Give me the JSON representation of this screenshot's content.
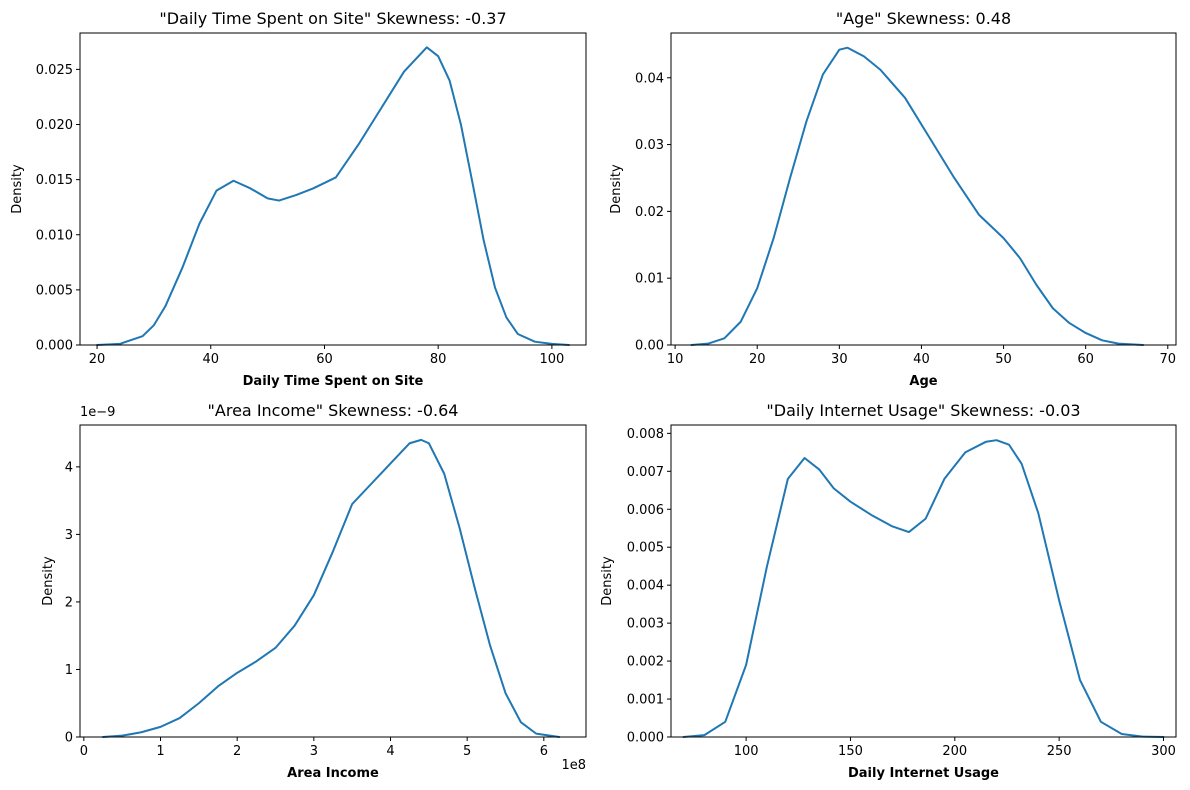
{
  "chart_data": [
    {
      "type": "line",
      "title": "\"Daily Time Spent on Site\" Skewness: -0.37",
      "xlabel": "Daily Time Spent on Site",
      "ylabel": "Density",
      "xlim": [
        17,
        106
      ],
      "ylim": [
        0,
        0.0283
      ],
      "xticks": [
        20,
        40,
        60,
        80,
        100
      ],
      "xtick_labels": [
        "20",
        "40",
        "60",
        "80",
        "100"
      ],
      "yticks": [
        0,
        0.005,
        0.01,
        0.015,
        0.02,
        0.025
      ],
      "ytick_labels": [
        "0.000",
        "0.005",
        "0.010",
        "0.015",
        "0.020",
        "0.025"
      ],
      "x_offset_label": "",
      "y_offset_label": "",
      "grid": false,
      "color": "#1f77b4",
      "series": [
        {
          "x": [
            20,
            24,
            28,
            30,
            32,
            35,
            38,
            41,
            44,
            47,
            50,
            52,
            55,
            58,
            62,
            66,
            70,
            74,
            78,
            80,
            82,
            84,
            86,
            88,
            90,
            92,
            94,
            97,
            100,
            103
          ],
          "values": [
            0.0,
            0.0001,
            0.0008,
            0.0018,
            0.0035,
            0.007,
            0.011,
            0.014,
            0.0149,
            0.0142,
            0.0133,
            0.0131,
            0.0136,
            0.0142,
            0.0152,
            0.0182,
            0.0215,
            0.0248,
            0.027,
            0.0262,
            0.024,
            0.02,
            0.0148,
            0.0095,
            0.0052,
            0.0025,
            0.001,
            0.0003,
            0.0001,
            0.0
          ]
        }
      ]
    },
    {
      "type": "line",
      "title": "\"Age\" Skewness: 0.48",
      "xlabel": "Age",
      "ylabel": "Density",
      "xlim": [
        9.5,
        71
      ],
      "ylim": [
        0,
        0.0467
      ],
      "xticks": [
        10,
        20,
        30,
        40,
        50,
        60,
        70
      ],
      "xtick_labels": [
        "10",
        "20",
        "30",
        "40",
        "50",
        "60",
        "70"
      ],
      "yticks": [
        0,
        0.01,
        0.02,
        0.03,
        0.04
      ],
      "ytick_labels": [
        "0.00",
        "0.01",
        "0.02",
        "0.03",
        "0.04"
      ],
      "x_offset_label": "",
      "y_offset_label": "",
      "grid": false,
      "color": "#1f77b4",
      "series": [
        {
          "x": [
            12,
            14,
            16,
            18,
            20,
            22,
            24,
            26,
            28,
            30,
            31,
            33,
            35,
            38,
            41,
            44,
            47,
            50,
            52,
            54,
            56,
            58,
            60,
            62,
            64,
            67
          ],
          "values": [
            0.0,
            0.0002,
            0.001,
            0.0035,
            0.0085,
            0.016,
            0.025,
            0.0335,
            0.0405,
            0.0442,
            0.0445,
            0.0432,
            0.0412,
            0.037,
            0.031,
            0.025,
            0.0195,
            0.016,
            0.013,
            0.009,
            0.0055,
            0.0033,
            0.0018,
            0.0007,
            0.0002,
            0.0
          ]
        }
      ]
    },
    {
      "type": "line",
      "title": "\"Area Income\" Skewness: -0.64",
      "xlabel": "Area Income",
      "ylabel": "Density",
      "xlim": [
        -0.05,
        6.55
      ],
      "ylim": [
        0,
        4.62
      ],
      "xticks": [
        0,
        1,
        2,
        3,
        4,
        5,
        6
      ],
      "xtick_labels": [
        "0",
        "1",
        "2",
        "3",
        "4",
        "5",
        "6"
      ],
      "yticks": [
        0,
        1,
        2,
        3,
        4
      ],
      "ytick_labels": [
        "0",
        "1",
        "2",
        "3",
        "4"
      ],
      "x_offset_label": "1e8",
      "y_offset_label": "1e−9",
      "grid": false,
      "color": "#1f77b4",
      "series": [
        {
          "x": [
            0.25,
            0.5,
            0.75,
            1.0,
            1.25,
            1.5,
            1.75,
            2.0,
            2.25,
            2.5,
            2.75,
            3.0,
            3.25,
            3.5,
            3.75,
            4.0,
            4.25,
            4.4,
            4.5,
            4.7,
            4.9,
            5.1,
            5.3,
            5.5,
            5.7,
            5.9,
            6.2
          ],
          "values": [
            0.0,
            0.02,
            0.07,
            0.15,
            0.28,
            0.5,
            0.75,
            0.95,
            1.12,
            1.32,
            1.65,
            2.1,
            2.75,
            3.45,
            3.75,
            4.05,
            4.35,
            4.4,
            4.35,
            3.9,
            3.1,
            2.2,
            1.35,
            0.65,
            0.22,
            0.05,
            0.0
          ]
        }
      ]
    },
    {
      "type": "line",
      "title": "\"Daily Internet Usage\" Skewness: -0.03",
      "xlabel": "Daily Internet Usage",
      "ylabel": "Density",
      "xlim": [
        64,
        306
      ],
      "ylim": [
        0,
        0.00822
      ],
      "xticks": [
        100,
        150,
        200,
        250,
        300
      ],
      "xtick_labels": [
        "100",
        "150",
        "200",
        "250",
        "300"
      ],
      "yticks": [
        0,
        0.001,
        0.002,
        0.003,
        0.004,
        0.005,
        0.006,
        0.007,
        0.008
      ],
      "ytick_labels": [
        "0.000",
        "0.001",
        "0.002",
        "0.003",
        "0.004",
        "0.005",
        "0.006",
        "0.007",
        "0.008"
      ],
      "x_offset_label": "",
      "y_offset_label": "",
      "grid": false,
      "color": "#1f77b4",
      "series": [
        {
          "x": [
            70,
            80,
            90,
            100,
            110,
            120,
            128,
            135,
            142,
            150,
            160,
            170,
            178,
            186,
            195,
            205,
            215,
            220,
            226,
            232,
            240,
            250,
            260,
            270,
            280,
            290,
            300
          ],
          "values": [
            0.0,
            5e-05,
            0.0004,
            0.0019,
            0.0045,
            0.0068,
            0.00735,
            0.00705,
            0.00655,
            0.0062,
            0.00585,
            0.00555,
            0.0054,
            0.00575,
            0.0068,
            0.0075,
            0.00778,
            0.00782,
            0.0077,
            0.0072,
            0.0059,
            0.0036,
            0.0015,
            0.0004,
            8e-05,
            1e-05,
            0.0
          ]
        }
      ]
    }
  ]
}
